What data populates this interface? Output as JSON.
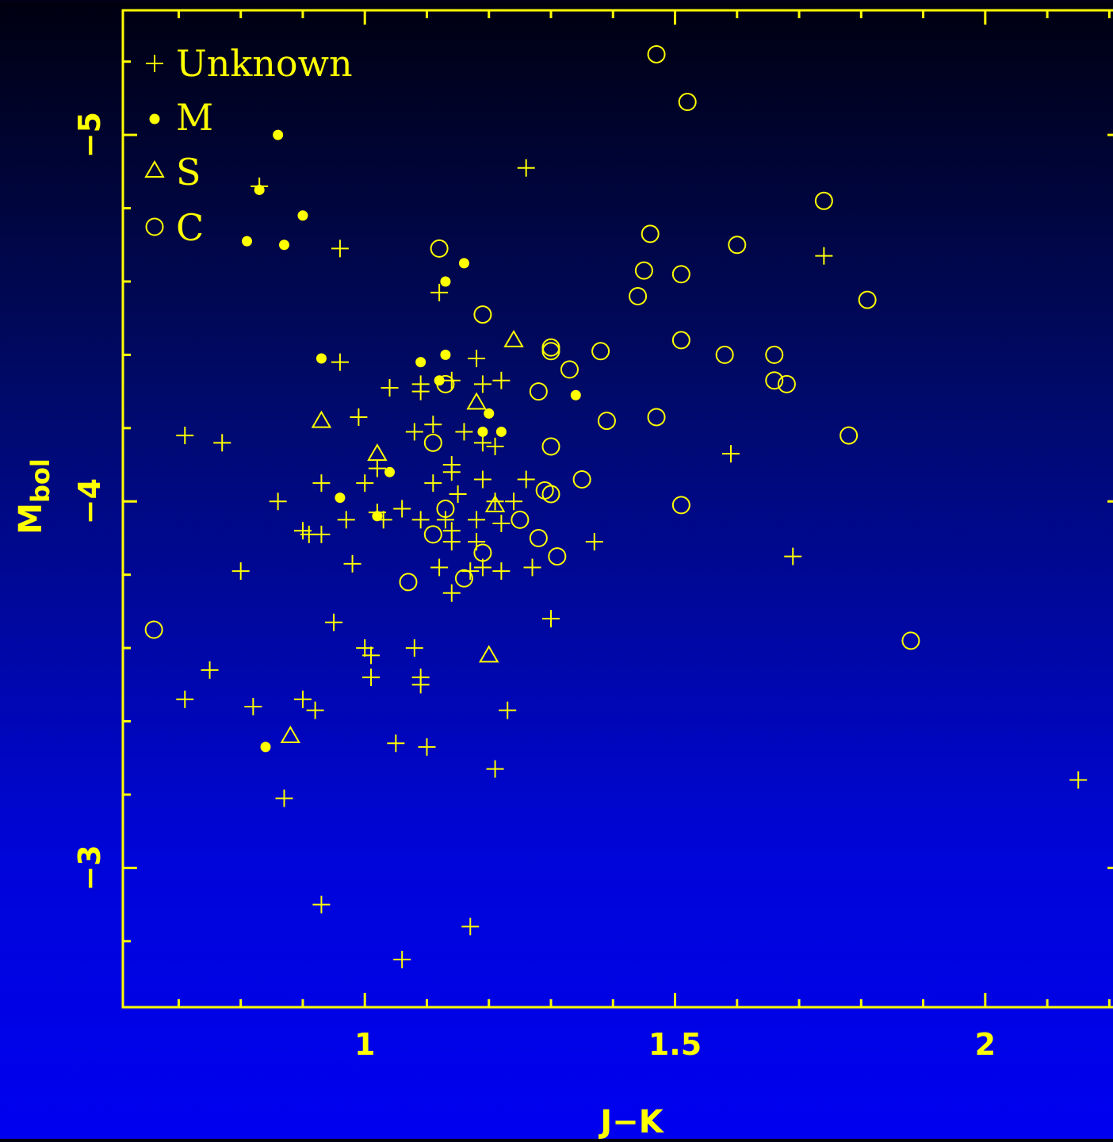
{
  "chart_data": {
    "type": "scatter",
    "xlabel": "J−K",
    "ylabel_main": "M",
    "ylabel_sub": "bol",
    "xlim": [
      0.61,
      2.22
    ],
    "ylim": [
      -5.34,
      -2.62
    ],
    "y_inverted": true,
    "x_ticks": [
      {
        "value": 1,
        "label": "1"
      },
      {
        "value": 1.5,
        "label": "1.5"
      },
      {
        "value": 2,
        "label": "2"
      }
    ],
    "y_ticks": [
      {
        "value": -5,
        "label": "−5"
      },
      {
        "value": -4,
        "label": "−4"
      },
      {
        "value": -3,
        "label": "−3"
      }
    ],
    "x_minor_step": 0.1,
    "y_minor_step": 0.2,
    "color": "#ffff00",
    "legend_position": "top-left",
    "series": [
      {
        "name": "Unknown",
        "marker": "plus",
        "points": [
          [
            1.26,
            -4.91
          ],
          [
            0.83,
            -4.86
          ],
          [
            0.96,
            -4.69
          ],
          [
            1.74,
            -4.67
          ],
          [
            1.12,
            -4.57
          ],
          [
            1.18,
            -4.39
          ],
          [
            0.96,
            -4.38
          ],
          [
            1.22,
            -4.33
          ],
          [
            1.04,
            -4.31
          ],
          [
            1.09,
            -4.32
          ],
          [
            1.09,
            -4.3
          ],
          [
            1.14,
            -4.33
          ],
          [
            1.19,
            -4.32
          ],
          [
            0.99,
            -4.23
          ],
          [
            1.11,
            -4.21
          ],
          [
            0.71,
            -4.18
          ],
          [
            0.77,
            -4.16
          ],
          [
            1.08,
            -4.19
          ],
          [
            1.16,
            -4.19
          ],
          [
            1.19,
            -4.16
          ],
          [
            1.21,
            -4.15
          ],
          [
            1.59,
            -4.13
          ],
          [
            1.02,
            -4.09
          ],
          [
            1.14,
            -4.1
          ],
          [
            1.14,
            -4.08
          ],
          [
            0.93,
            -4.05
          ],
          [
            1.0,
            -4.05
          ],
          [
            1.11,
            -4.05
          ],
          [
            1.19,
            -4.06
          ],
          [
            1.26,
            -4.06
          ],
          [
            1.15,
            -4.02
          ],
          [
            1.21,
            -4.0
          ],
          [
            1.24,
            -4.0
          ],
          [
            0.86,
            -4.0
          ],
          [
            1.02,
            -3.97
          ],
          [
            1.06,
            -3.98
          ],
          [
            0.97,
            -3.95
          ],
          [
            1.03,
            -3.95
          ],
          [
            1.09,
            -3.95
          ],
          [
            1.13,
            -3.95
          ],
          [
            1.18,
            -3.95
          ],
          [
            1.22,
            -3.94
          ],
          [
            0.9,
            -3.92
          ],
          [
            0.91,
            -3.91
          ],
          [
            0.93,
            -3.91
          ],
          [
            1.14,
            -3.92
          ],
          [
            1.14,
            -3.89
          ],
          [
            1.18,
            -3.89
          ],
          [
            1.37,
            -3.89
          ],
          [
            1.69,
            -3.85
          ],
          [
            0.98,
            -3.83
          ],
          [
            1.12,
            -3.82
          ],
          [
            1.19,
            -3.82
          ],
          [
            1.22,
            -3.81
          ],
          [
            1.27,
            -3.82
          ],
          [
            0.8,
            -3.81
          ],
          [
            1.17,
            -3.81
          ],
          [
            1.14,
            -3.75
          ],
          [
            1.3,
            -3.68
          ],
          [
            0.95,
            -3.67
          ],
          [
            1.0,
            -3.6
          ],
          [
            1.01,
            -3.58
          ],
          [
            1.08,
            -3.6
          ],
          [
            0.75,
            -3.54
          ],
          [
            1.01,
            -3.52
          ],
          [
            1.09,
            -3.52
          ],
          [
            1.09,
            -3.5
          ],
          [
            0.71,
            -3.46
          ],
          [
            0.9,
            -3.46
          ],
          [
            0.82,
            -3.44
          ],
          [
            0.92,
            -3.43
          ],
          [
            1.23,
            -3.43
          ],
          [
            1.05,
            -3.34
          ],
          [
            1.1,
            -3.33
          ],
          [
            1.21,
            -3.27
          ],
          [
            2.15,
            -3.24
          ],
          [
            0.87,
            -3.19
          ],
          [
            0.93,
            -2.9
          ],
          [
            1.17,
            -2.84
          ],
          [
            1.06,
            -2.75
          ]
        ]
      },
      {
        "name": "M",
        "marker": "dot",
        "points": [
          [
            0.86,
            -5.0
          ],
          [
            0.83,
            -4.85
          ],
          [
            0.9,
            -4.78
          ],
          [
            0.81,
            -4.71
          ],
          [
            0.87,
            -4.7
          ],
          [
            1.16,
            -4.65
          ],
          [
            1.13,
            -4.6
          ],
          [
            0.93,
            -4.39
          ],
          [
            1.09,
            -4.38
          ],
          [
            1.13,
            -4.4
          ],
          [
            1.12,
            -4.33
          ],
          [
            1.34,
            -4.29
          ],
          [
            1.2,
            -4.24
          ],
          [
            1.19,
            -4.19
          ],
          [
            1.22,
            -4.19
          ],
          [
            1.04,
            -4.08
          ],
          [
            0.96,
            -4.01
          ],
          [
            1.02,
            -3.96
          ],
          [
            0.84,
            -3.33
          ]
        ]
      },
      {
        "name": "S",
        "marker": "triangle",
        "points": [
          [
            1.24,
            -4.44
          ],
          [
            1.18,
            -4.27
          ],
          [
            0.93,
            -4.22
          ],
          [
            1.02,
            -4.13
          ],
          [
            1.21,
            -3.99
          ],
          [
            1.2,
            -3.58
          ],
          [
            0.88,
            -3.36
          ]
        ]
      },
      {
        "name": "C",
        "marker": "circle",
        "points": [
          [
            1.47,
            -5.22
          ],
          [
            1.52,
            -5.09
          ],
          [
            1.74,
            -4.82
          ],
          [
            1.46,
            -4.73
          ],
          [
            1.6,
            -4.7
          ],
          [
            1.12,
            -4.69
          ],
          [
            1.45,
            -4.63
          ],
          [
            1.51,
            -4.62
          ],
          [
            1.44,
            -4.56
          ],
          [
            1.81,
            -4.55
          ],
          [
            1.19,
            -4.51
          ],
          [
            1.51,
            -4.44
          ],
          [
            1.3,
            -4.42
          ],
          [
            1.3,
            -4.41
          ],
          [
            1.38,
            -4.41
          ],
          [
            1.58,
            -4.4
          ],
          [
            1.66,
            -4.4
          ],
          [
            1.33,
            -4.36
          ],
          [
            1.66,
            -4.33
          ],
          [
            1.68,
            -4.32
          ],
          [
            1.13,
            -4.32
          ],
          [
            1.28,
            -4.3
          ],
          [
            1.47,
            -4.23
          ],
          [
            1.39,
            -4.22
          ],
          [
            1.78,
            -4.18
          ],
          [
            1.11,
            -4.16
          ],
          [
            1.3,
            -4.15
          ],
          [
            1.35,
            -4.06
          ],
          [
            1.29,
            -4.03
          ],
          [
            1.3,
            -4.02
          ],
          [
            1.51,
            -3.99
          ],
          [
            1.13,
            -3.98
          ],
          [
            1.25,
            -3.95
          ],
          [
            1.11,
            -3.91
          ],
          [
            1.28,
            -3.9
          ],
          [
            1.19,
            -3.86
          ],
          [
            1.31,
            -3.85
          ],
          [
            1.16,
            -3.79
          ],
          [
            1.07,
            -3.78
          ],
          [
            0.66,
            -3.65
          ],
          [
            1.88,
            -3.62
          ]
        ]
      }
    ]
  }
}
